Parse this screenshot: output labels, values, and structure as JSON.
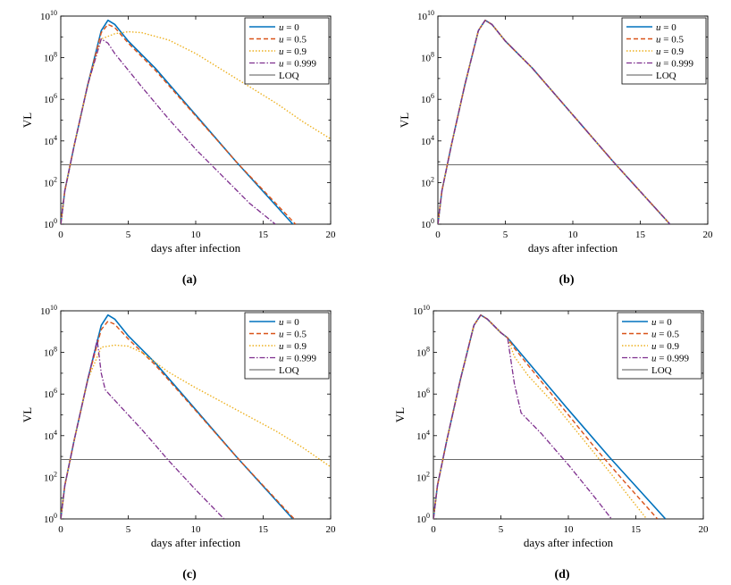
{
  "chart_data": [
    {
      "type": "line",
      "panel_label": "(a)",
      "xlabel": "days after infection",
      "ylabel": "VL",
      "xlim": [
        0,
        20
      ],
      "ylim": [
        1,
        10000000000
      ],
      "yscale": "log",
      "xticks": [
        "0",
        "5",
        "10",
        "15",
        "20"
      ],
      "yticks": [
        {
          "base": "10",
          "exp": "0"
        },
        {
          "base": "10",
          "exp": "2"
        },
        {
          "base": "10",
          "exp": "4"
        },
        {
          "base": "10",
          "exp": "6"
        },
        {
          "base": "10",
          "exp": "8"
        },
        {
          "base": "10",
          "exp": "10"
        }
      ],
      "legend": [
        {
          "name": "u = 0",
          "var": "u",
          "rest": " = 0"
        },
        {
          "name": "u = 0.5",
          "var": "u",
          "rest": " = 0.5"
        },
        {
          "name": "u = 0.9",
          "var": "u",
          "rest": " = 0.9"
        },
        {
          "name": "u = 0.999",
          "var": "u",
          "rest": " = 0.999"
        },
        {
          "name": "LOQ",
          "var": "",
          "rest": "LOQ"
        }
      ],
      "loq": 2.85,
      "series": [
        {
          "name": "u = 0",
          "x": [
            0,
            0.3,
            1,
            2,
            3,
            3.5,
            4,
            5,
            7,
            10,
            13,
            17.2
          ],
          "log10_values": [
            0,
            1.6,
            3.8,
            6.7,
            9.3,
            9.8,
            9.6,
            8.8,
            7.5,
            5.25,
            3.0,
            0
          ]
        },
        {
          "name": "u = 0.5",
          "x": [
            0,
            0.3,
            1,
            2,
            3,
            3.5,
            4,
            5,
            7,
            10,
            13,
            17.4
          ],
          "log10_values": [
            0,
            1.6,
            3.8,
            6.7,
            9.2,
            9.6,
            9.45,
            8.7,
            7.4,
            5.2,
            3.0,
            0
          ]
        },
        {
          "name": "u = 0.9",
          "x": [
            0,
            0.3,
            1,
            2,
            3,
            4,
            5,
            6,
            8,
            10,
            12,
            14,
            16,
            18,
            20
          ],
          "log10_values": [
            0,
            1.6,
            3.8,
            6.7,
            8.9,
            9.15,
            9.25,
            9.2,
            8.85,
            8.2,
            7.4,
            6.6,
            5.8,
            4.9,
            4.1
          ]
        },
        {
          "name": "u = 0.999",
          "x": [
            0,
            0.3,
            1,
            2,
            3,
            3.5,
            4,
            6,
            8,
            10,
            12,
            14,
            15.9
          ],
          "log10_values": [
            0,
            1.6,
            3.8,
            6.7,
            8.9,
            8.7,
            8.2,
            6.6,
            5.05,
            3.6,
            2.3,
            1.0,
            0
          ]
        }
      ]
    },
    {
      "type": "line",
      "panel_label": "(b)",
      "xlabel": "days after infection",
      "ylabel": "VL",
      "xlim": [
        0,
        20
      ],
      "ylim": [
        1,
        10000000000
      ],
      "yscale": "log",
      "xticks": [
        "0",
        "5",
        "10",
        "15",
        "20"
      ],
      "yticks": [
        {
          "base": "10",
          "exp": "0"
        },
        {
          "base": "10",
          "exp": "2"
        },
        {
          "base": "10",
          "exp": "4"
        },
        {
          "base": "10",
          "exp": "6"
        },
        {
          "base": "10",
          "exp": "8"
        },
        {
          "base": "10",
          "exp": "10"
        }
      ],
      "legend": [
        {
          "name": "u = 0",
          "var": "u",
          "rest": " = 0"
        },
        {
          "name": "u = 0.5",
          "var": "u",
          "rest": " = 0.5"
        },
        {
          "name": "u = 0.9",
          "var": "u",
          "rest": " = 0.9"
        },
        {
          "name": "u = 0.999",
          "var": "u",
          "rest": " = 0.999"
        },
        {
          "name": "LOQ",
          "var": "",
          "rest": "LOQ"
        }
      ],
      "loq": 2.85,
      "series": [
        {
          "name": "u = 0",
          "x": [
            0,
            0.3,
            1,
            2,
            3,
            3.5,
            4,
            5,
            7,
            10,
            13,
            17.2
          ],
          "log10_values": [
            0,
            1.6,
            3.8,
            6.7,
            9.3,
            9.8,
            9.6,
            8.8,
            7.5,
            5.25,
            3.0,
            0
          ]
        },
        {
          "name": "u = 0.5",
          "x": [
            0,
            0.3,
            1,
            2,
            3,
            3.5,
            4,
            5,
            7,
            10,
            13,
            17.2
          ],
          "log10_values": [
            0,
            1.6,
            3.8,
            6.7,
            9.3,
            9.8,
            9.6,
            8.8,
            7.5,
            5.25,
            3.0,
            0
          ]
        },
        {
          "name": "u = 0.9",
          "x": [
            0,
            0.3,
            1,
            2,
            3,
            3.5,
            4,
            5,
            7,
            10,
            13,
            17.2
          ],
          "log10_values": [
            0,
            1.6,
            3.8,
            6.7,
            9.3,
            9.8,
            9.6,
            8.8,
            7.5,
            5.25,
            3.0,
            0
          ]
        },
        {
          "name": "u = 0.999",
          "x": [
            0,
            0.3,
            1,
            2,
            3,
            3.5,
            4,
            5,
            7,
            10,
            13,
            17.2
          ],
          "log10_values": [
            0,
            1.6,
            3.8,
            6.7,
            9.3,
            9.8,
            9.6,
            8.8,
            7.5,
            5.25,
            3.0,
            0
          ]
        }
      ]
    },
    {
      "type": "line",
      "panel_label": "(c)",
      "xlabel": "days after infection",
      "ylabel": "VL",
      "xlim": [
        0,
        20
      ],
      "ylim": [
        1,
        10000000000
      ],
      "yscale": "log",
      "xticks": [
        "0",
        "5",
        "10",
        "15",
        "20"
      ],
      "yticks": [
        {
          "base": "10",
          "exp": "0"
        },
        {
          "base": "10",
          "exp": "2"
        },
        {
          "base": "10",
          "exp": "4"
        },
        {
          "base": "10",
          "exp": "6"
        },
        {
          "base": "10",
          "exp": "8"
        },
        {
          "base": "10",
          "exp": "10"
        }
      ],
      "legend": [
        {
          "name": "u = 0",
          "var": "u",
          "rest": " = 0"
        },
        {
          "name": "u = 0.5",
          "var": "u",
          "rest": " = 0.5"
        },
        {
          "name": "u = 0.9",
          "var": "u",
          "rest": " = 0.9"
        },
        {
          "name": "u = 0.999",
          "var": "u",
          "rest": " = 0.999"
        },
        {
          "name": "LOQ",
          "var": "",
          "rest": "LOQ"
        }
      ],
      "loq": 2.85,
      "series": [
        {
          "name": "u = 0",
          "x": [
            0,
            0.3,
            1,
            2,
            3,
            3.5,
            4,
            5,
            7,
            10,
            13,
            17.2
          ],
          "log10_values": [
            0,
            1.6,
            3.8,
            6.7,
            9.3,
            9.8,
            9.6,
            8.8,
            7.5,
            5.25,
            3.0,
            0
          ]
        },
        {
          "name": "u = 0.5",
          "x": [
            0,
            0.3,
            1,
            2,
            3,
            3.5,
            4,
            5,
            7,
            10,
            13,
            17.3
          ],
          "log10_values": [
            0,
            1.6,
            3.8,
            6.7,
            9.1,
            9.5,
            9.35,
            8.65,
            7.4,
            5.2,
            3.0,
            0
          ]
        },
        {
          "name": "u = 0.9",
          "x": [
            0,
            0.3,
            1,
            2,
            3,
            4,
            5,
            6,
            8,
            10,
            12,
            14,
            16,
            18,
            20
          ],
          "log10_values": [
            0,
            1.6,
            3.8,
            6.7,
            8.25,
            8.35,
            8.3,
            8.0,
            7.05,
            6.3,
            5.6,
            4.9,
            4.2,
            3.4,
            2.5
          ]
        },
        {
          "name": "u = 0.999",
          "x": [
            0,
            0.3,
            1,
            2,
            2.7,
            3.0,
            3.3,
            4,
            6,
            8,
            10,
            12.1
          ],
          "log10_values": [
            0,
            1.6,
            3.8,
            6.7,
            8.6,
            7.0,
            6.2,
            5.7,
            4.3,
            2.8,
            1.4,
            0
          ]
        }
      ]
    },
    {
      "type": "line",
      "panel_label": "(d)",
      "xlabel": "days after infection",
      "ylabel": "VL",
      "xlim": [
        0,
        20
      ],
      "ylim": [
        1,
        10000000000
      ],
      "yscale": "log",
      "xticks": [
        "0",
        "5",
        "10",
        "15",
        "20"
      ],
      "yticks": [
        {
          "base": "10",
          "exp": "0"
        },
        {
          "base": "10",
          "exp": "2"
        },
        {
          "base": "10",
          "exp": "4"
        },
        {
          "base": "10",
          "exp": "6"
        },
        {
          "base": "10",
          "exp": "8"
        },
        {
          "base": "10",
          "exp": "10"
        }
      ],
      "legend": [
        {
          "name": "u = 0",
          "var": "u",
          "rest": " = 0"
        },
        {
          "name": "u = 0.5",
          "var": "u",
          "rest": " = 0.5"
        },
        {
          "name": "u = 0.9",
          "var": "u",
          "rest": " = 0.9"
        },
        {
          "name": "u = 0.999",
          "var": "u",
          "rest": " = 0.999"
        },
        {
          "name": "LOQ",
          "var": "",
          "rest": "LOQ"
        }
      ],
      "loq": 2.85,
      "series": [
        {
          "name": "u = 0",
          "x": [
            0,
            0.3,
            1,
            2,
            3,
            3.5,
            4,
            5,
            5.5,
            7,
            10,
            13,
            17.2
          ],
          "log10_values": [
            0,
            1.6,
            3.8,
            6.7,
            9.3,
            9.8,
            9.6,
            8.95,
            8.7,
            7.55,
            5.25,
            3.0,
            0
          ]
        },
        {
          "name": "u = 0.5",
          "x": [
            0,
            0.3,
            1,
            2,
            3,
            3.5,
            4,
            5,
            5.5,
            6,
            8,
            10,
            12,
            14,
            16.6
          ],
          "log10_values": [
            0,
            1.6,
            3.8,
            6.7,
            9.3,
            9.8,
            9.6,
            8.95,
            8.7,
            8.2,
            6.6,
            5.0,
            3.4,
            1.9,
            0
          ]
        },
        {
          "name": "u = 0.9",
          "x": [
            0,
            0.3,
            1,
            2,
            3,
            3.5,
            4,
            5,
            5.5,
            6,
            7,
            9,
            11,
            13,
            15.8
          ],
          "log10_values": [
            0,
            1.6,
            3.8,
            6.7,
            9.3,
            9.8,
            9.6,
            8.95,
            8.7,
            7.8,
            6.9,
            5.5,
            3.9,
            2.3,
            0
          ]
        },
        {
          "name": "u = 0.999",
          "x": [
            0,
            0.3,
            1,
            2,
            3,
            3.5,
            4,
            5,
            5.5,
            6.0,
            6.5,
            8,
            10,
            12,
            13.2
          ],
          "log10_values": [
            0,
            1.6,
            3.8,
            6.7,
            9.3,
            9.8,
            9.6,
            8.95,
            8.7,
            6.5,
            5.1,
            4.1,
            2.6,
            1.0,
            0
          ]
        }
      ]
    }
  ],
  "colors": {
    "u0": "#0072BD",
    "u05": "#D95319",
    "u09": "#EDB120",
    "u0999": "#7E2F8E",
    "loq": "#555555"
  }
}
